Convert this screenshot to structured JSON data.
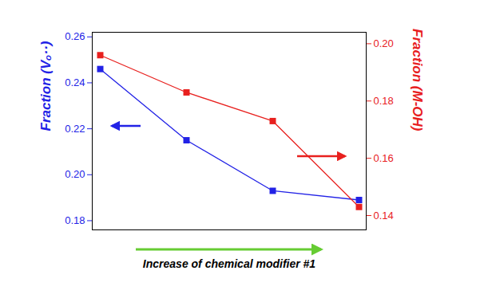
{
  "chart_data": {
    "type": "line",
    "xlabel": "Increase of chemical modifier #1",
    "ylabel": "Fraction (Vₒ··)",
    "y2label": "Fraction (M-OH)",
    "categories": [
      null,
      null,
      null,
      null
    ],
    "ylim": [
      0.176,
      0.262
    ],
    "yticks": [
      0.18,
      {
        "value": 0.2,
        "label": "0.20"
      },
      0.22,
      0.24,
      0.26
    ],
    "y2lim": [
      0.135,
      0.204
    ],
    "y2ticks": [
      0.14,
      0.16,
      0.18,
      {
        "value": 0.2,
        "label": "0.20"
      }
    ],
    "grid": false,
    "series": [
      {
        "color": "#2222e6",
        "marker": "square",
        "values": [
          0.246,
          0.215,
          0.193,
          0.189
        ]
      },
      {
        "color": "#e8201e",
        "marker": "square",
        "axis": "y2",
        "values": [
          0.196,
          0.183,
          0.173,
          0.143
        ]
      }
    ]
  }
}
